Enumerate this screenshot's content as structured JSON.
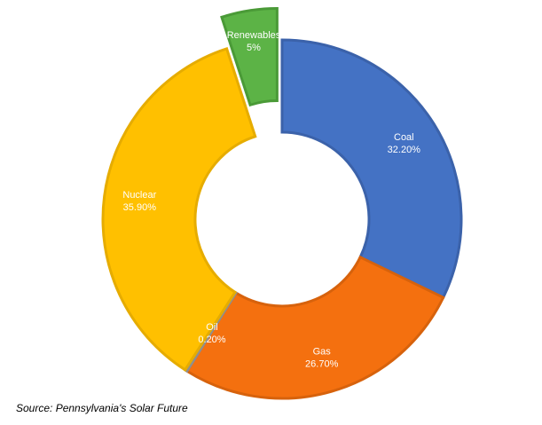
{
  "chart_data": {
    "type": "pie",
    "variant": "donut",
    "title": "",
    "legend": "none",
    "start_angle_deg": 0,
    "direction": "clockwise",
    "slices": [
      {
        "label": "Coal",
        "value_text": "32.20%",
        "value": 32.2,
        "color": "#4472C4",
        "stroke": "#3B62AA",
        "exploded": false
      },
      {
        "label": "Gas",
        "value_text": "26.70%",
        "value": 26.7,
        "color": "#F4700F",
        "stroke": "#D7620C",
        "exploded": false
      },
      {
        "label": "Oil",
        "value_text": "0.20%",
        "value": 0.2,
        "color": "#A5A5A5",
        "stroke": "#8F8F8F",
        "exploded": false
      },
      {
        "label": "Nuclear",
        "value_text": "35.90%",
        "value": 35.9,
        "color": "#FFC000",
        "stroke": "#E6AC00",
        "exploded": false
      },
      {
        "label": "Renewables",
        "value_text": "5%",
        "value": 5.0,
        "color": "#5CB346",
        "stroke": "#4A9A37",
        "exploded": true
      }
    ]
  },
  "source": "Source: Pennsylvania's Solar Future"
}
